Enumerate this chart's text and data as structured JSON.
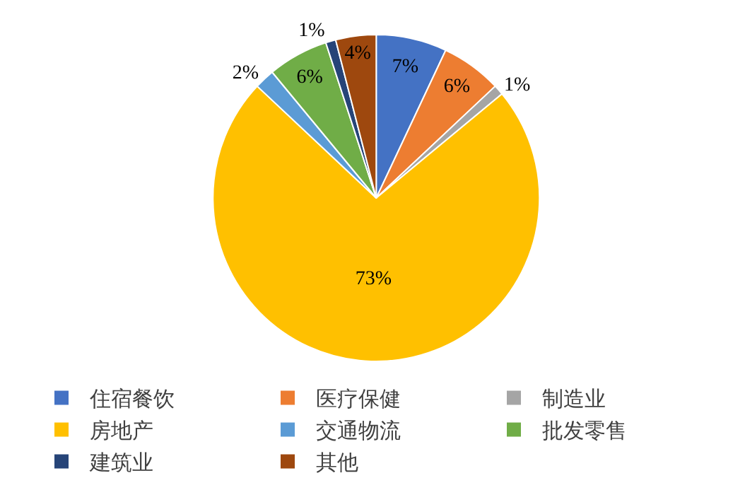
{
  "chart_data": {
    "type": "pie",
    "categories": [
      "住宿餐饮",
      "医疗保健",
      "制造业",
      "房地产",
      "交通物流",
      "批发零售",
      "建筑业",
      "其他"
    ],
    "values": [
      7,
      6,
      1,
      73,
      2,
      6,
      1,
      4
    ],
    "value_labels": [
      "7%",
      "6%",
      "1%",
      "73%",
      "2%",
      "6%",
      "1%",
      "4%"
    ],
    "colors": [
      "#4472c4",
      "#ed7d31",
      "#a5a5a5",
      "#ffc000",
      "#5b9bd5",
      "#70ad47",
      "#264478",
      "#9e480e"
    ],
    "legend": "bottom"
  }
}
